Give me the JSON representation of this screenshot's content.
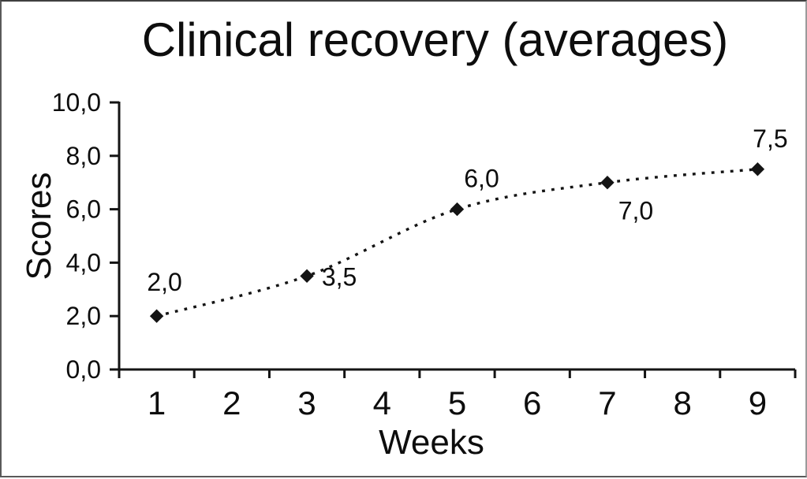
{
  "chart_data": {
    "type": "line",
    "title": "Clinical recovery (averages)",
    "xlabel": "Weeks",
    "ylabel": "Scores",
    "x": [
      1,
      3,
      5,
      7,
      9
    ],
    "values": [
      2.0,
      3.5,
      6.0,
      7.0,
      7.5
    ],
    "point_labels": [
      "2,0",
      "3,5",
      "6,0",
      "7,0",
      "7,5"
    ],
    "point_label_positions": [
      "above",
      "right",
      "above",
      "below",
      "above"
    ],
    "categories": [
      "1",
      "2",
      "3",
      "4",
      "5",
      "6",
      "7",
      "8",
      "9"
    ],
    "y_ticks": [
      0,
      2,
      4,
      6,
      8,
      10
    ],
    "y_tick_labels": [
      "0,0",
      "2,0",
      "4,0",
      "6,0",
      "8,0",
      "10,0"
    ],
    "ylim": [
      0,
      10
    ],
    "xlim": [
      0.5,
      9.5
    ],
    "grid": false,
    "legend": "none",
    "line_style": "dotted",
    "marker": "diamond",
    "series_color": "#141414",
    "text_color": "#0d0d0d",
    "background_color": "#ffffff",
    "decimal_separator": ","
  }
}
